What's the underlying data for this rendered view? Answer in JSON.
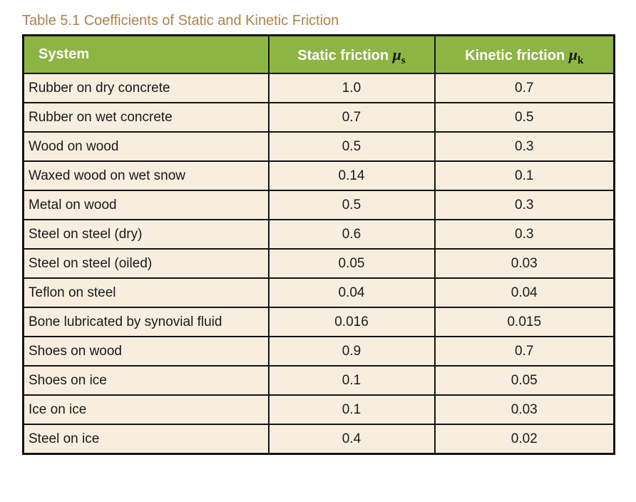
{
  "title": "Table 5.1 Coefficients of Static and Kinetic Friction",
  "colors": {
    "header_bg": "#8cb544",
    "header_text": "#ffffff",
    "row_bg": "#f8eee0",
    "border": "#141414",
    "title_text": "#b2824a",
    "mu_symbol_text": "#141414"
  },
  "table": {
    "headers": {
      "system": "System",
      "static_label": "Static friction",
      "static_symbol": "μ",
      "static_sub": "s",
      "kinetic_label": "Kinetic friction",
      "kinetic_symbol": "μ",
      "kinetic_sub": "k"
    },
    "rows": [
      {
        "system": "Rubber on dry concrete",
        "static": "1.0",
        "kinetic": "0.7"
      },
      {
        "system": "Rubber on wet concrete",
        "static": "0.7",
        "kinetic": "0.5"
      },
      {
        "system": "Wood on wood",
        "static": "0.5",
        "kinetic": "0.3"
      },
      {
        "system": "Waxed wood on wet snow",
        "static": "0.14",
        "kinetic": "0.1"
      },
      {
        "system": "Metal on wood",
        "static": "0.5",
        "kinetic": "0.3"
      },
      {
        "system": "Steel on steel (dry)",
        "static": "0.6",
        "kinetic": "0.3"
      },
      {
        "system": "Steel on steel (oiled)",
        "static": "0.05",
        "kinetic": "0.03"
      },
      {
        "system": "Teflon on steel",
        "static": "0.04",
        "kinetic": "0.04"
      },
      {
        "system": "Bone lubricated by synovial fluid",
        "static": "0.016",
        "kinetic": "0.015"
      },
      {
        "system": "Shoes on wood",
        "static": "0.9",
        "kinetic": "0.7"
      },
      {
        "system": "Shoes on ice",
        "static": "0.1",
        "kinetic": "0.05"
      },
      {
        "system": "Ice on ice",
        "static": "0.1",
        "kinetic": "0.03"
      },
      {
        "system": "Steel on ice",
        "static": "0.4",
        "kinetic": "0.02"
      }
    ]
  },
  "chart_data": {
    "type": "table",
    "title": "Table 5.1 Coefficients of Static and Kinetic Friction",
    "columns": [
      "System",
      "Static friction μs",
      "Kinetic friction μk"
    ],
    "rows": [
      [
        "Rubber on dry concrete",
        1.0,
        0.7
      ],
      [
        "Rubber on wet concrete",
        0.7,
        0.5
      ],
      [
        "Wood on wood",
        0.5,
        0.3
      ],
      [
        "Waxed wood on wet snow",
        0.14,
        0.1
      ],
      [
        "Metal on wood",
        0.5,
        0.3
      ],
      [
        "Steel on steel (dry)",
        0.6,
        0.3
      ],
      [
        "Steel on steel (oiled)",
        0.05,
        0.03
      ],
      [
        "Teflon on steel",
        0.04,
        0.04
      ],
      [
        "Bone lubricated by synovial fluid",
        0.016,
        0.015
      ],
      [
        "Shoes on wood",
        0.9,
        0.7
      ],
      [
        "Shoes on ice",
        0.1,
        0.05
      ],
      [
        "Ice on ice",
        0.1,
        0.03
      ],
      [
        "Steel on ice",
        0.4,
        0.02
      ]
    ]
  }
}
